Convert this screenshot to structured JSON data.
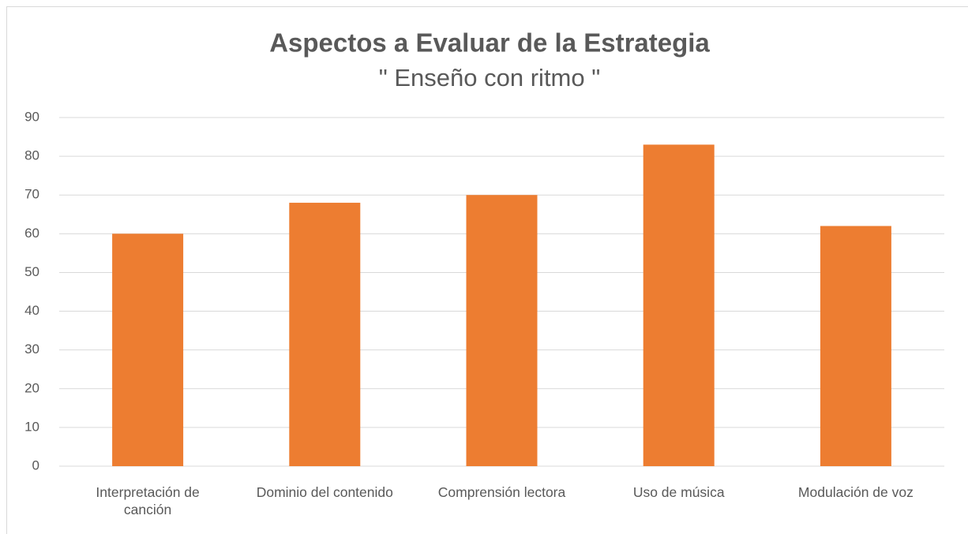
{
  "chart_data": {
    "type": "bar",
    "title": "Aspectos a Evaluar de la Estrategia",
    "subtitle": "\" Enseño con ritmo \"",
    "categories": [
      "Interpretación de canción",
      "Dominio del contenido",
      "Comprensión lectora",
      "Uso de música",
      "Modulación de voz"
    ],
    "values": [
      60,
      68,
      70,
      83,
      62
    ],
    "color": "#ed7d31",
    "ylim": [
      0,
      90
    ],
    "yticks": [
      0,
      10,
      20,
      30,
      40,
      50,
      60,
      70,
      80,
      90
    ],
    "grid": true
  }
}
